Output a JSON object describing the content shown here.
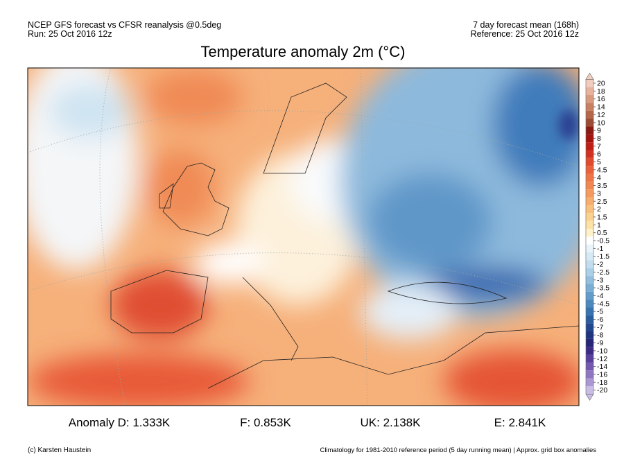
{
  "header": {
    "left": [
      "NCEP GFS forecast vs CFSR reanalysis @0.5deg",
      "Run: 25 Oct 2016 12z"
    ],
    "right": [
      "7 day forecast mean (168h)",
      "Reference: 25 Oct 2016 12z"
    ],
    "title": "Temperature anomaly 2m (°C)"
  },
  "colorbar": {
    "ticks": [
      20,
      18,
      16,
      14,
      12,
      10,
      9,
      8,
      7,
      6,
      5,
      4.5,
      4,
      3.5,
      3,
      2.5,
      2,
      1.5,
      1,
      0.5,
      -0.5,
      -1,
      -1.5,
      -2,
      -2.5,
      -3,
      -3.5,
      -4,
      -4.5,
      -5,
      -6,
      -7,
      -8,
      -9,
      -10,
      -12,
      -14,
      -16,
      -18,
      -20
    ],
    "colors": [
      "#f2cdbf",
      "#e7b39d",
      "#d99a7f",
      "#c98062",
      "#b5674b",
      "#9c4b34",
      "#8a1a12",
      "#a3140f",
      "#bd1f17",
      "#d23020",
      "#e04a2e",
      "#e9603a",
      "#ef7446",
      "#f28752",
      "#f59a5e",
      "#f7ad6c",
      "#f9c07c",
      "#fbd18f",
      "#fde2a6",
      "#fff1c9",
      "#ffffff",
      "#e9f3fa",
      "#d6e9f5",
      "#c2ddef",
      "#abcfe7",
      "#93bfde",
      "#7aaed4",
      "#629cca",
      "#4b88bd",
      "#3773b0",
      "#2a5d9f",
      "#21488e",
      "#1e357d",
      "#262576",
      "#3d2a85",
      "#5a3f9c",
      "#7559b0",
      "#9076c2",
      "#ab97d3",
      "#c9bde6"
    ]
  },
  "stats": [
    "Anomaly D: 1.333K",
    "F: 0.853K",
    "UK: 2.138K",
    "E: 2.841K"
  ],
  "footer": {
    "left": "(c) Karsten Haustein",
    "right": "Climatology for 1981-2010 reference period (5 day running mean) | Approx. grid box anomalies"
  }
}
